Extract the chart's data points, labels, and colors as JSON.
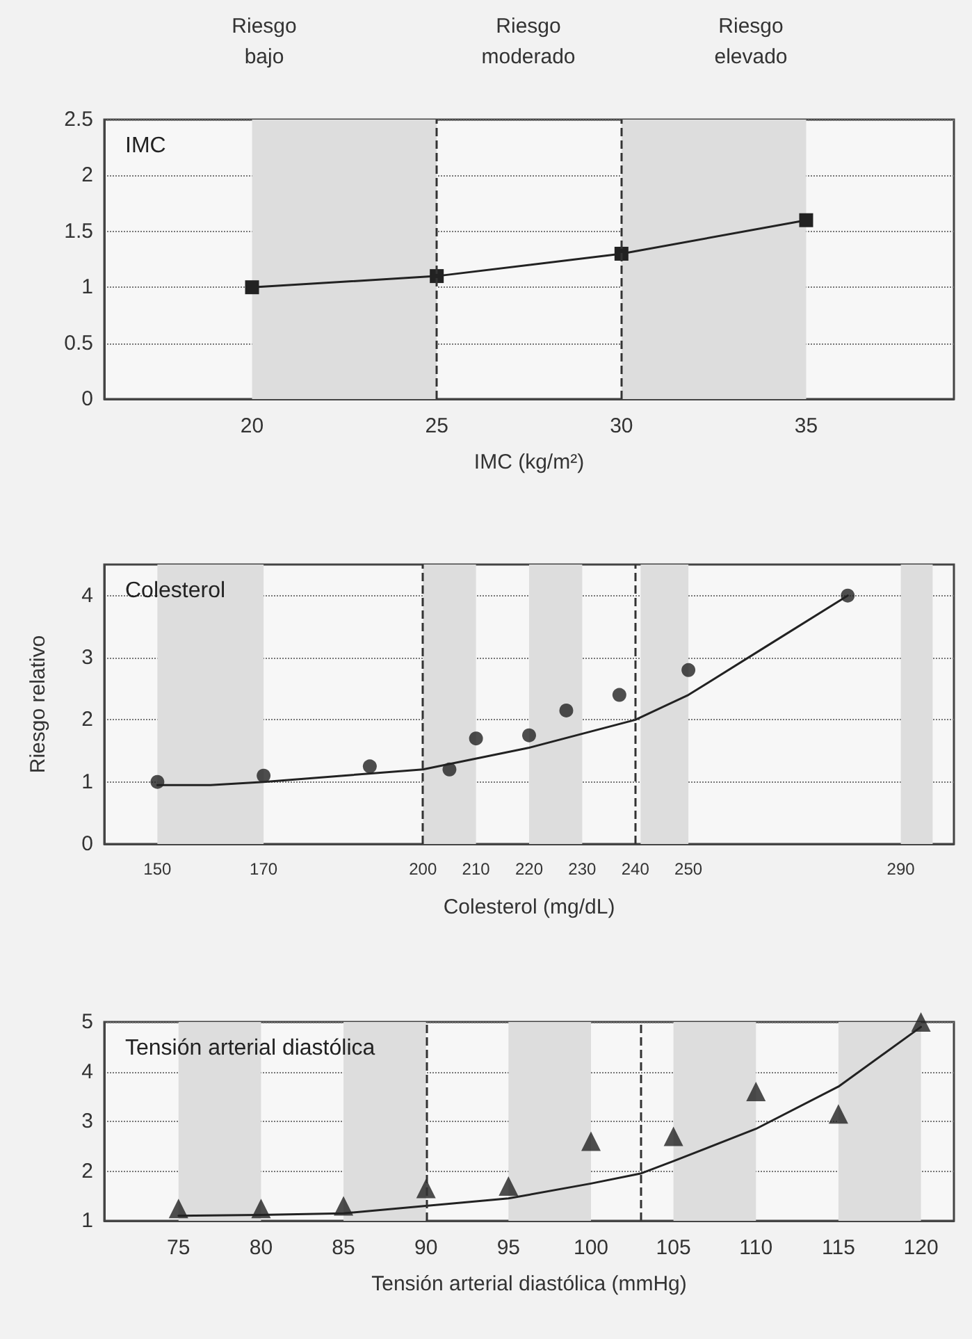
{
  "chart_data": [
    {
      "type": "line",
      "title": "IMC",
      "xlabel": "IMC (kg/m²)",
      "marker": "square",
      "grid": "y",
      "x": [
        20,
        25,
        30,
        35
      ],
      "series": [
        {
          "color": "#222222",
          "values": [
            1.0,
            1.1,
            1.3,
            1.6
          ]
        }
      ],
      "xlim": [
        16,
        39
      ],
      "xticks": [
        20,
        25,
        30,
        35
      ],
      "ylim": [
        0,
        2.5
      ],
      "yticks": [
        0,
        0.5,
        1,
        1.5,
        2,
        2.5
      ],
      "ref_lines": [
        {
          "axis": "x",
          "value": 25,
          "line_style": "dashed",
          "color": "#333333"
        },
        {
          "axis": "x",
          "value": 30,
          "line_style": "dashed",
          "color": "#333333"
        }
      ],
      "bands": [
        {
          "axis": "x",
          "from": 20,
          "to": 25,
          "color": "#dddddd"
        },
        {
          "axis": "x",
          "from": 30,
          "to": 35,
          "color": "#dddddd"
        }
      ],
      "annotations": [
        "Riesgo\nbajo",
        "Riesgo\nmoderado",
        "Riesgo\nelevado"
      ]
    },
    {
      "type": "scatter",
      "title": "Colesterol",
      "xlabel": "Colesterol (mg/dL)",
      "ylabel": "Riesgo relativo",
      "grid": "y",
      "series": [
        {
          "marker": "circle",
          "color": "#222222",
          "x": [
            150,
            170,
            190,
            205,
            210,
            220,
            227,
            237,
            250,
            280
          ],
          "values": [
            1.0,
            1.1,
            1.25,
            1.2,
            1.7,
            1.75,
            2.15,
            2.4,
            2.8,
            4.0
          ]
        },
        {
          "type": "line",
          "marker": "none",
          "color": "#222222",
          "x": [
            150,
            160,
            170,
            185,
            200,
            220,
            240,
            250,
            265,
            280
          ],
          "values": [
            0.95,
            0.95,
            1.0,
            1.1,
            1.2,
            1.55,
            2.0,
            2.4,
            3.2,
            4.0
          ]
        }
      ],
      "xlim": [
        140,
        300
      ],
      "xticks": [
        150,
        170,
        200,
        210,
        220,
        230,
        240,
        250,
        290
      ],
      "ylim": [
        0,
        4.5
      ],
      "yticks": [
        0,
        1,
        2,
        3,
        4
      ],
      "ref_lines": [
        {
          "axis": "x",
          "value": 200,
          "line_style": "dashed",
          "color": "#333333"
        },
        {
          "axis": "x",
          "value": 240,
          "line_style": "dashed",
          "color": "#333333"
        }
      ],
      "bands": [
        {
          "axis": "x",
          "from": 150,
          "to": 170,
          "color": "#dddddd"
        },
        {
          "axis": "x",
          "from": 200,
          "to": 210,
          "color": "#dddddd"
        },
        {
          "axis": "x",
          "from": 220,
          "to": 230,
          "color": "#dddddd"
        },
        {
          "axis": "x",
          "from": 241,
          "to": 250,
          "color": "#dddddd"
        },
        {
          "axis": "x",
          "from": 290,
          "to": 296,
          "color": "#dddddd"
        }
      ]
    },
    {
      "type": "scatter",
      "title": "Tensión arterial diastólica",
      "xlabel": "Tensión arterial diastólica (mmHg)",
      "grid": "y",
      "series": [
        {
          "marker": "triangle",
          "color": "#222222",
          "x": [
            75,
            80,
            85,
            90,
            95,
            100,
            105,
            110,
            115,
            120
          ],
          "values": [
            1.25,
            1.25,
            1.3,
            1.65,
            1.7,
            2.6,
            2.7,
            3.6,
            3.15,
            5.0
          ]
        },
        {
          "type": "line",
          "marker": "none",
          "color": "#222222",
          "x": [
            75,
            80,
            85,
            90,
            95,
            100,
            103,
            105,
            110,
            115,
            120
          ],
          "values": [
            1.1,
            1.12,
            1.15,
            1.3,
            1.45,
            1.75,
            1.95,
            2.2,
            2.85,
            3.7,
            4.9
          ]
        }
      ],
      "xlim": [
        70.5,
        122
      ],
      "xticks": [
        75,
        80,
        85,
        90,
        95,
        100,
        105,
        110,
        115,
        120
      ],
      "ylim": [
        1,
        5
      ],
      "yticks": [
        1,
        2,
        3,
        4,
        5
      ],
      "ref_lines": [
        {
          "axis": "x",
          "value": 90,
          "line_style": "dashed",
          "color": "#333333"
        },
        {
          "axis": "x",
          "value": 103,
          "line_style": "dashed",
          "color": "#333333"
        }
      ],
      "bands": [
        {
          "axis": "x",
          "from": 75,
          "to": 80,
          "color": "#dddddd"
        },
        {
          "axis": "x",
          "from": 85,
          "to": 90,
          "color": "#dddddd"
        },
        {
          "axis": "x",
          "from": 95,
          "to": 100,
          "color": "#dddddd"
        },
        {
          "axis": "x",
          "from": 105,
          "to": 110,
          "color": "#dddddd"
        },
        {
          "axis": "x",
          "from": 115,
          "to": 120,
          "color": "#dddddd"
        }
      ]
    }
  ]
}
